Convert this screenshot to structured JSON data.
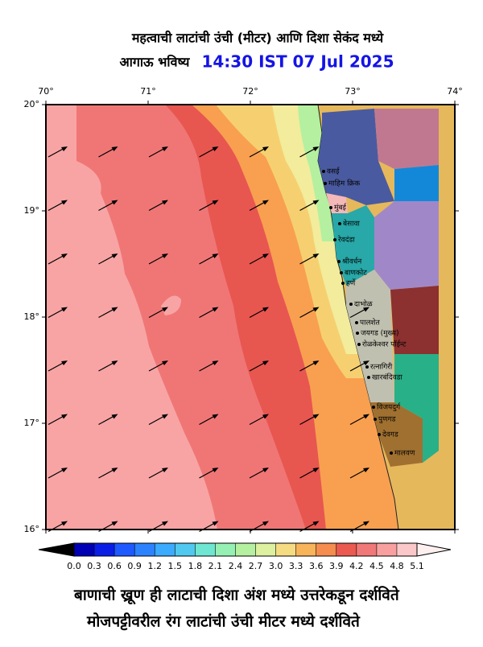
{
  "header": {
    "title": "महत्वाची लाटांची उंची (मीटर) आणि दिशा सेकंद मध्ये",
    "subtitle": "आगाऊ भविष्य",
    "time": "14:30 IST 07 Jul 2025"
  },
  "map": {
    "lon_ticks": [
      {
        "value": 70,
        "label": "70°"
      },
      {
        "value": 71,
        "label": "71°"
      },
      {
        "value": 72,
        "label": "72°"
      },
      {
        "value": 73,
        "label": "73°"
      },
      {
        "value": 74,
        "label": "74°"
      }
    ],
    "lat_ticks": [
      {
        "value": 20,
        "label": "20°"
      },
      {
        "value": 19,
        "label": "19°"
      },
      {
        "value": 18,
        "label": "18°"
      },
      {
        "value": 17,
        "label": "17°"
      },
      {
        "value": 16,
        "label": "16°"
      }
    ],
    "lonlim": [
      70,
      74
    ],
    "latlim": [
      16,
      20
    ],
    "places": [
      "वसई",
      "माहिम क्रिक",
      "मुंबई",
      "बेसावा",
      "रेवदंडा",
      "श्रीवर्धन",
      "बाणकोट",
      "हर्णे",
      "दाभोळ",
      "पालशेत",
      "जयगड (मुख्य)",
      "रोळकेश्वर पॉईन्ट",
      "रत्नागिरी",
      "खारबंदिवडा",
      "विजयदुर्ग",
      "पुणगड",
      "देवगड",
      "मालवण"
    ]
  },
  "colorbar": {
    "ticks": [
      {
        "value": 0,
        "label": "0.0"
      },
      0.3,
      0.6,
      0.9,
      1.2,
      1.5,
      1.8,
      2.1,
      2.4,
      2.7,
      {
        "value": 3,
        "label": "3.0"
      },
      3.3,
      3.6,
      3.9,
      4.2,
      4.5,
      4.8,
      5.1
    ],
    "colors": [
      "#1e0a8c",
      "#0000b4",
      "#0a1ee6",
      "#1e5aff",
      "#2d82ff",
      "#3caaff",
      "#50c8f0",
      "#6ee6d2",
      "#96f0b4",
      "#b4f0a0",
      "#dcf0a0",
      "#f5dc82",
      "#f8b45a",
      "#f58c50",
      "#eb5a50",
      "#f07878",
      "#f8a0a0",
      "#fac8c8",
      "#fff0f0"
    ]
  },
  "footer": {
    "line1": "बाणाची ख्रूण ही लाटाची दिशा अंश मध्ये उत्तरेकडून दर्शविते",
    "line2": "मोजपट्टीवरील रंग लाटांची उंची मीटर मध्ये दर्शविते"
  }
}
